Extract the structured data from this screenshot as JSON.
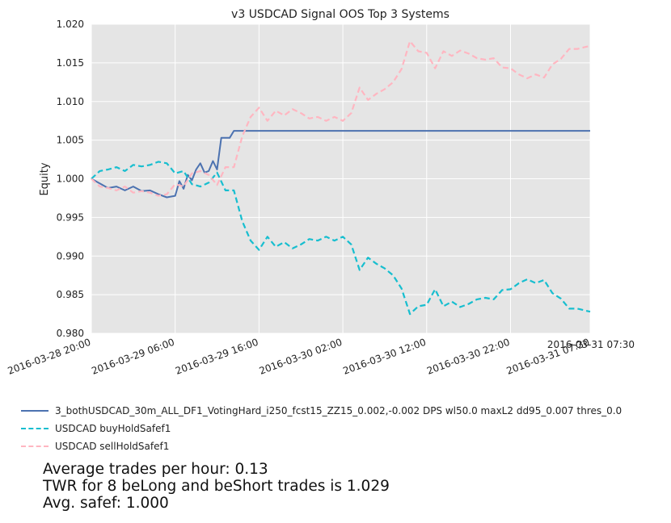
{
  "chart_data": {
    "type": "line",
    "title": "v3 USDCAD Signal OOS Top 3 Systems",
    "ylabel": "Equity",
    "xlabel": "",
    "ylim": [
      0.98,
      1.02
    ],
    "yticks": [
      "0.980",
      "0.985",
      "0.990",
      "0.995",
      "1.000",
      "1.005",
      "1.010",
      "1.015",
      "1.020"
    ],
    "x_start": "2016-03-28 20:00",
    "x_end": "2016-03-31 07:30",
    "xticks": [
      "2016-03-28 20:00",
      "2016-03-29 06:00",
      "2016-03-29 16:00",
      "2016-03-30 02:00",
      "2016-03-30 12:00",
      "2016-03-30 22:00",
      "2016-03-31 07:30"
    ],
    "end_annotation": "2016-03-31 07:30",
    "grid": true,
    "legend_placement": "below",
    "series": [
      {
        "name": "3_bothUSDCAD_30m_ALL_DF1_VotingHard_i250_fcst15_ZZ15_0.002,-0.002 DPS wl50.0 maxL2 dd95_0.007 thres_0.0",
        "color": "#4c72b0",
        "dash": "solid",
        "points": [
          [
            "2016-03-28 20:00",
            1.0
          ],
          [
            "2016-03-28 21:00",
            0.9994
          ],
          [
            "2016-03-28 22:00",
            0.9988
          ],
          [
            "2016-03-28 23:00",
            0.999
          ],
          [
            "2016-03-29 00:00",
            0.9985
          ],
          [
            "2016-03-29 01:00",
            0.999
          ],
          [
            "2016-03-29 02:00",
            0.9984
          ],
          [
            "2016-03-29 03:00",
            0.9985
          ],
          [
            "2016-03-29 04:00",
            0.998
          ],
          [
            "2016-03-29 05:00",
            0.9976
          ],
          [
            "2016-03-29 06:00",
            0.9978
          ],
          [
            "2016-03-29 06:30",
            0.9997
          ],
          [
            "2016-03-29 07:00",
            0.9987
          ],
          [
            "2016-03-29 07:30",
            1.0005
          ],
          [
            "2016-03-29 08:00",
            0.9998
          ],
          [
            "2016-03-29 08:30",
            1.0012
          ],
          [
            "2016-03-29 09:00",
            1.002
          ],
          [
            "2016-03-29 09:30",
            1.0008
          ],
          [
            "2016-03-29 10:00",
            1.001
          ],
          [
            "2016-03-29 10:30",
            1.0023
          ],
          [
            "2016-03-29 11:00",
            1.0012
          ],
          [
            "2016-03-29 11:30",
            1.0053
          ],
          [
            "2016-03-29 12:30",
            1.0053
          ],
          [
            "2016-03-29 13:00",
            1.0062
          ],
          [
            "2016-03-31 07:30",
            1.0062
          ]
        ]
      },
      {
        "name": "USDCAD buyHoldSafef1",
        "color": "#17becf",
        "dash": "dashed",
        "points": [
          [
            "2016-03-28 20:00",
            1.0
          ],
          [
            "2016-03-28 21:00",
            1.001
          ],
          [
            "2016-03-28 22:00",
            1.0012
          ],
          [
            "2016-03-28 23:00",
            1.0015
          ],
          [
            "2016-03-29 00:00",
            1.001
          ],
          [
            "2016-03-29 01:00",
            1.0018
          ],
          [
            "2016-03-29 02:00",
            1.0016
          ],
          [
            "2016-03-29 03:00",
            1.0018
          ],
          [
            "2016-03-29 04:00",
            1.0022
          ],
          [
            "2016-03-29 05:00",
            1.002
          ],
          [
            "2016-03-29 06:00",
            1.0007
          ],
          [
            "2016-03-29 07:00",
            1.001
          ],
          [
            "2016-03-29 08:00",
            0.9993
          ],
          [
            "2016-03-29 09:00",
            0.999
          ],
          [
            "2016-03-29 10:00",
            0.9995
          ],
          [
            "2016-03-29 11:00",
            1.0008
          ],
          [
            "2016-03-29 12:00",
            0.9985
          ],
          [
            "2016-03-29 13:00",
            0.9985
          ],
          [
            "2016-03-29 14:00",
            0.9945
          ],
          [
            "2016-03-29 15:00",
            0.992
          ],
          [
            "2016-03-29 16:00",
            0.9908
          ],
          [
            "2016-03-29 17:00",
            0.9925
          ],
          [
            "2016-03-29 18:00",
            0.9912
          ],
          [
            "2016-03-29 19:00",
            0.9918
          ],
          [
            "2016-03-29 20:00",
            0.991
          ],
          [
            "2016-03-29 21:00",
            0.9915
          ],
          [
            "2016-03-29 22:00",
            0.9922
          ],
          [
            "2016-03-29 23:00",
            0.992
          ],
          [
            "2016-03-30 00:00",
            0.9925
          ],
          [
            "2016-03-30 01:00",
            0.992
          ],
          [
            "2016-03-30 02:00",
            0.9925
          ],
          [
            "2016-03-30 03:00",
            0.9915
          ],
          [
            "2016-03-30 04:00",
            0.9882
          ],
          [
            "2016-03-30 05:00",
            0.9898
          ],
          [
            "2016-03-30 06:00",
            0.989
          ],
          [
            "2016-03-30 07:00",
            0.9884
          ],
          [
            "2016-03-30 08:00",
            0.9875
          ],
          [
            "2016-03-30 09:00",
            0.9858
          ],
          [
            "2016-03-30 10:00",
            0.9825
          ],
          [
            "2016-03-30 11:00",
            0.9835
          ],
          [
            "2016-03-30 12:00",
            0.9837
          ],
          [
            "2016-03-30 13:00",
            0.9857
          ],
          [
            "2016-03-30 14:00",
            0.9835
          ],
          [
            "2016-03-30 15:00",
            0.9841
          ],
          [
            "2016-03-30 16:00",
            0.9834
          ],
          [
            "2016-03-30 17:00",
            0.9838
          ],
          [
            "2016-03-30 18:00",
            0.9844
          ],
          [
            "2016-03-30 19:00",
            0.9846
          ],
          [
            "2016-03-30 20:00",
            0.9844
          ],
          [
            "2016-03-30 21:00",
            0.9856
          ],
          [
            "2016-03-30 22:00",
            0.9857
          ],
          [
            "2016-03-30 23:00",
            0.9865
          ],
          [
            "2016-03-31 00:00",
            0.987
          ],
          [
            "2016-03-31 01:00",
            0.9865
          ],
          [
            "2016-03-31 02:00",
            0.9869
          ],
          [
            "2016-03-31 03:00",
            0.9852
          ],
          [
            "2016-03-31 04:00",
            0.9845
          ],
          [
            "2016-03-31 05:00",
            0.9832
          ],
          [
            "2016-03-31 06:00",
            0.9832
          ],
          [
            "2016-03-31 07:30",
            0.9828
          ]
        ]
      },
      {
        "name": "USDCAD sellHoldSafef1",
        "color": "#ffb6c1",
        "dash": "dashed",
        "points": [
          [
            "2016-03-28 20:00",
            1.0
          ],
          [
            "2016-03-28 21:00",
            0.999
          ],
          [
            "2016-03-28 22:00",
            0.9988
          ],
          [
            "2016-03-28 23:00",
            0.9985
          ],
          [
            "2016-03-29 00:00",
            0.999
          ],
          [
            "2016-03-29 01:00",
            0.9982
          ],
          [
            "2016-03-29 02:00",
            0.9984
          ],
          [
            "2016-03-29 03:00",
            0.9982
          ],
          [
            "2016-03-29 04:00",
            0.9978
          ],
          [
            "2016-03-29 05:00",
            0.998
          ],
          [
            "2016-03-29 06:00",
            0.9993
          ],
          [
            "2016-03-29 07:00",
            0.999
          ],
          [
            "2016-03-29 08:00",
            1.0007
          ],
          [
            "2016-03-29 09:00",
            1.001
          ],
          [
            "2016-03-29 10:00",
            1.0005
          ],
          [
            "2016-03-29 11:00",
            0.9992
          ],
          [
            "2016-03-29 12:00",
            1.0015
          ],
          [
            "2016-03-29 13:00",
            1.0015
          ],
          [
            "2016-03-29 14:00",
            1.0055
          ],
          [
            "2016-03-29 15:00",
            1.008
          ],
          [
            "2016-03-29 16:00",
            1.0092
          ],
          [
            "2016-03-29 17:00",
            1.0075
          ],
          [
            "2016-03-29 18:00",
            1.0088
          ],
          [
            "2016-03-29 19:00",
            1.0082
          ],
          [
            "2016-03-29 20:00",
            1.009
          ],
          [
            "2016-03-29 21:00",
            1.0085
          ],
          [
            "2016-03-29 22:00",
            1.0078
          ],
          [
            "2016-03-29 23:00",
            1.008
          ],
          [
            "2016-03-30 00:00",
            1.0075
          ],
          [
            "2016-03-30 01:00",
            1.008
          ],
          [
            "2016-03-30 02:00",
            1.0075
          ],
          [
            "2016-03-30 03:00",
            1.0085
          ],
          [
            "2016-03-30 04:00",
            1.0118
          ],
          [
            "2016-03-30 05:00",
            1.0102
          ],
          [
            "2016-03-30 06:00",
            1.011
          ],
          [
            "2016-03-30 07:00",
            1.0116
          ],
          [
            "2016-03-30 08:00",
            1.0125
          ],
          [
            "2016-03-30 09:00",
            1.0142
          ],
          [
            "2016-03-30 10:00",
            1.0178
          ],
          [
            "2016-03-30 11:00",
            1.0165
          ],
          [
            "2016-03-30 12:00",
            1.0163
          ],
          [
            "2016-03-30 13:00",
            1.0143
          ],
          [
            "2016-03-30 14:00",
            1.0165
          ],
          [
            "2016-03-30 15:00",
            1.0159
          ],
          [
            "2016-03-30 16:00",
            1.0166
          ],
          [
            "2016-03-30 17:00",
            1.0162
          ],
          [
            "2016-03-30 18:00",
            1.0156
          ],
          [
            "2016-03-30 19:00",
            1.0154
          ],
          [
            "2016-03-30 20:00",
            1.0156
          ],
          [
            "2016-03-30 21:00",
            1.0144
          ],
          [
            "2016-03-30 22:00",
            1.0143
          ],
          [
            "2016-03-30 23:00",
            1.0135
          ],
          [
            "2016-03-31 00:00",
            1.013
          ],
          [
            "2016-03-31 01:00",
            1.0135
          ],
          [
            "2016-03-31 02:00",
            1.0131
          ],
          [
            "2016-03-31 03:00",
            1.0148
          ],
          [
            "2016-03-31 04:00",
            1.0155
          ],
          [
            "2016-03-31 05:00",
            1.0168
          ],
          [
            "2016-03-31 06:00",
            1.0168
          ],
          [
            "2016-03-31 07:30",
            1.0172
          ]
        ]
      }
    ]
  },
  "stats": {
    "line1": "Average trades per hour: 0.13",
    "line2": "TWR for 8 beLong and beShort trades is 1.029",
    "line3": "Avg. safef: 1.000"
  },
  "colors": {
    "plot_background": "#e5e5e5",
    "grid": "#ffffff"
  }
}
